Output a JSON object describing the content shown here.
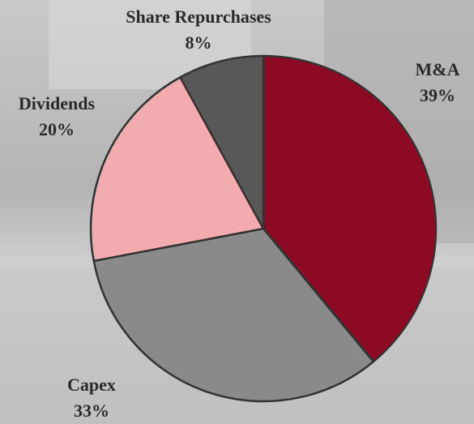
{
  "chart_data": {
    "type": "pie",
    "categories": [
      "M&A",
      "Capex",
      "Dividends",
      "Share Repurchases"
    ],
    "values": [
      39,
      33,
      20,
      8
    ],
    "value_labels": [
      "39%",
      "33%",
      "20%",
      "8%"
    ],
    "colors": [
      "#8c0a24",
      "#8a8a8a",
      "#f2abae",
      "#585858"
    ]
  }
}
